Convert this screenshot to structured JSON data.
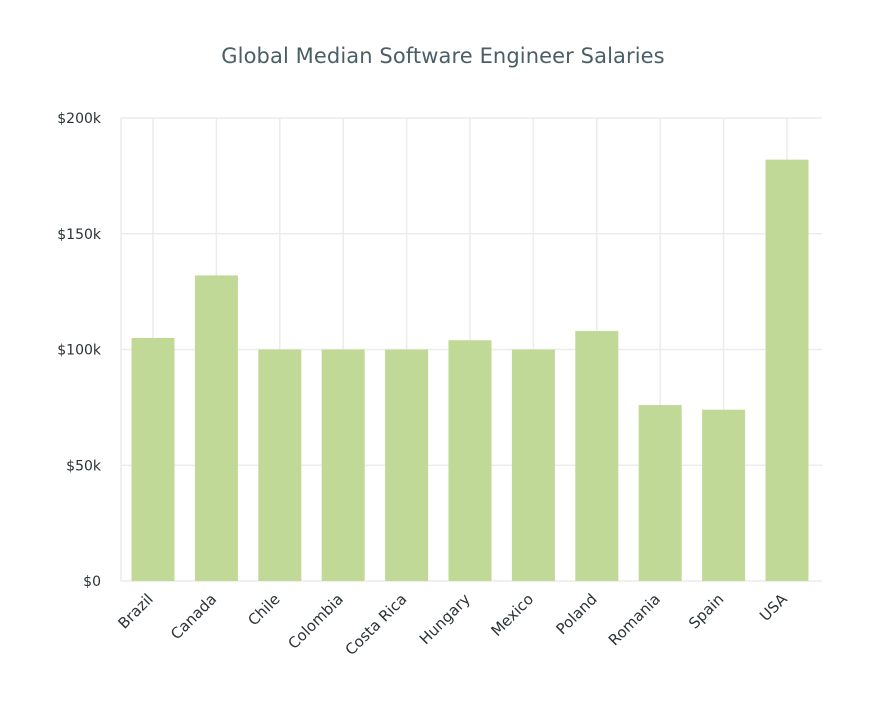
{
  "chart_data": {
    "type": "bar",
    "title": "Global Median Software Engineer Salaries",
    "xlabel": "",
    "ylabel": "",
    "categories": [
      "Brazil",
      "Canada",
      "Chile",
      "Colombia",
      "Costa Rica",
      "Hungary",
      "Mexico",
      "Poland",
      "Romania",
      "Spain",
      "USA"
    ],
    "values": [
      105000,
      132000,
      100000,
      100000,
      100000,
      104000,
      100000,
      108000,
      76000,
      74000,
      182000
    ],
    "ylim": [
      0,
      200000
    ],
    "yticks": [
      0,
      50000,
      100000,
      150000,
      200000
    ],
    "ytick_labels": [
      "$0",
      "$50k",
      "$100k",
      "$150k",
      "$200k"
    ],
    "grid": true,
    "bar_color": "#c0d997",
    "grid_color": "#ececec",
    "title_color": "#4a5e66"
  }
}
